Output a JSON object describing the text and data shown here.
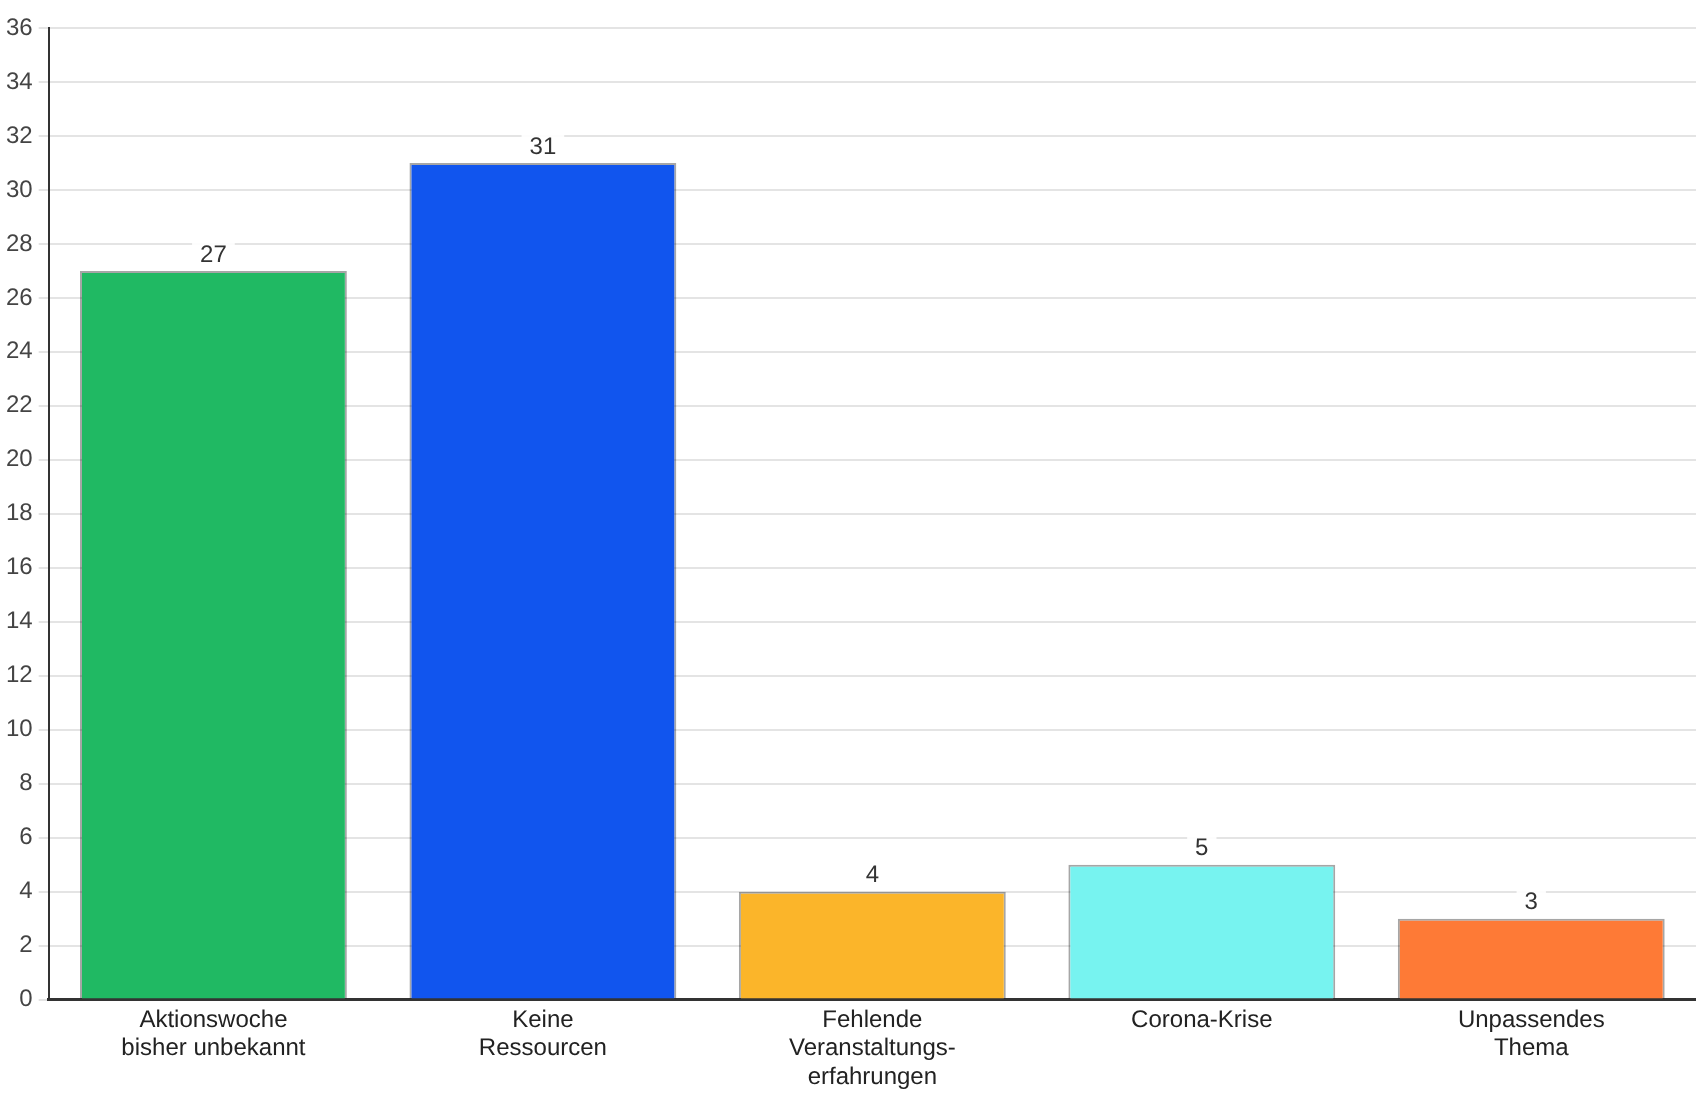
{
  "chart_data": {
    "type": "bar",
    "categories": [
      "Aktionswoche bisher unbekannt",
      "Keine Ressourcen",
      "Fehlende Veranstaltungs-erfahrungen",
      "Corona-Krise",
      "Unpassendes Thema"
    ],
    "values": [
      27,
      31,
      4,
      5,
      3
    ],
    "colors": [
      "#20b963",
      "#1155ee",
      "#fbb52a",
      "#77f3f0",
      "#fe7a36"
    ],
    "ylim": [
      0,
      36
    ],
    "yticks": [
      0,
      2,
      4,
      6,
      8,
      10,
      12,
      14,
      16,
      18,
      20,
      22,
      24,
      26,
      28,
      30,
      32,
      34,
      36
    ],
    "grid": "y",
    "data_labels": true
  }
}
